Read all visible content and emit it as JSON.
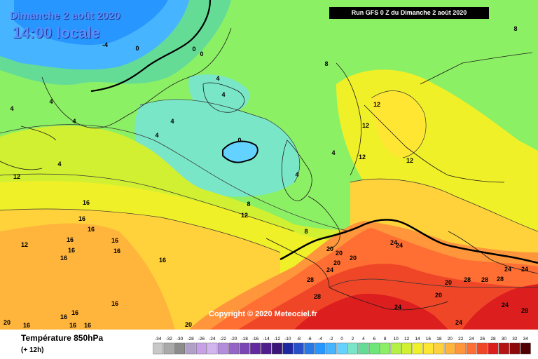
{
  "map": {
    "date": "Dimanche 2 août 2020",
    "local_time": "14:00 locale",
    "run_info": "Run GFS 0 Z du Dimanche 2 août 2020",
    "copyright": "Copyright © 2020 Meteociel.fr",
    "variable": "Température 850hPa",
    "lead_time": "(+ 12h)",
    "legend": {
      "values": [
        -34,
        -32,
        -30,
        -28,
        -26,
        -24,
        -22,
        -20,
        -18,
        -16,
        -14,
        -12,
        -10,
        -8,
        -6,
        -4,
        -2,
        0,
        2,
        4,
        6,
        8,
        10,
        12,
        14,
        16,
        18,
        20,
        22,
        24,
        26,
        28,
        30,
        32,
        34
      ],
      "colors": [
        "#c8c8c8",
        "#a9a9a9",
        "#8c8c8c",
        "#b0a0c8",
        "#c8a0e8",
        "#d2b4f0",
        "#b48cdc",
        "#9664c8",
        "#7a46b4",
        "#6428a0",
        "#501e8c",
        "#3c1478",
        "#1e28a0",
        "#2850c8",
        "#2878e6",
        "#2896ff",
        "#46b4ff",
        "#64d2ff",
        "#7ae6c8",
        "#64dc96",
        "#6ee678",
        "#8cf064",
        "#b4f046",
        "#d2f032",
        "#f0f028",
        "#ffe632",
        "#ffd23c",
        "#ffb43c",
        "#ff963c",
        "#ff6e32",
        "#f04628",
        "#dc1e1e",
        "#b41414",
        "#8c0a0a",
        "#500000"
      ]
    },
    "isotherm_labels": [
      "0",
      "-4",
      "0",
      "0",
      "4",
      "4",
      "4",
      "4",
      "4",
      "4",
      "4",
      "4",
      "0",
      "4",
      "4",
      "8",
      "8",
      "8",
      "8",
      "12",
      "12",
      "12",
      "12",
      "12",
      "12",
      "12",
      "16",
      "16",
      "16",
      "16",
      "16",
      "16",
      "16",
      "16",
      "16",
      "16",
      "16",
      "16",
      "16",
      "16",
      "16",
      "20",
      "20",
      "20",
      "20",
      "20",
      "20",
      "20",
      "20",
      "24",
      "24",
      "24",
      "24",
      "24",
      "24",
      "24",
      "24",
      "28",
      "28",
      "28",
      "28",
      "28",
      "28"
    ]
  }
}
